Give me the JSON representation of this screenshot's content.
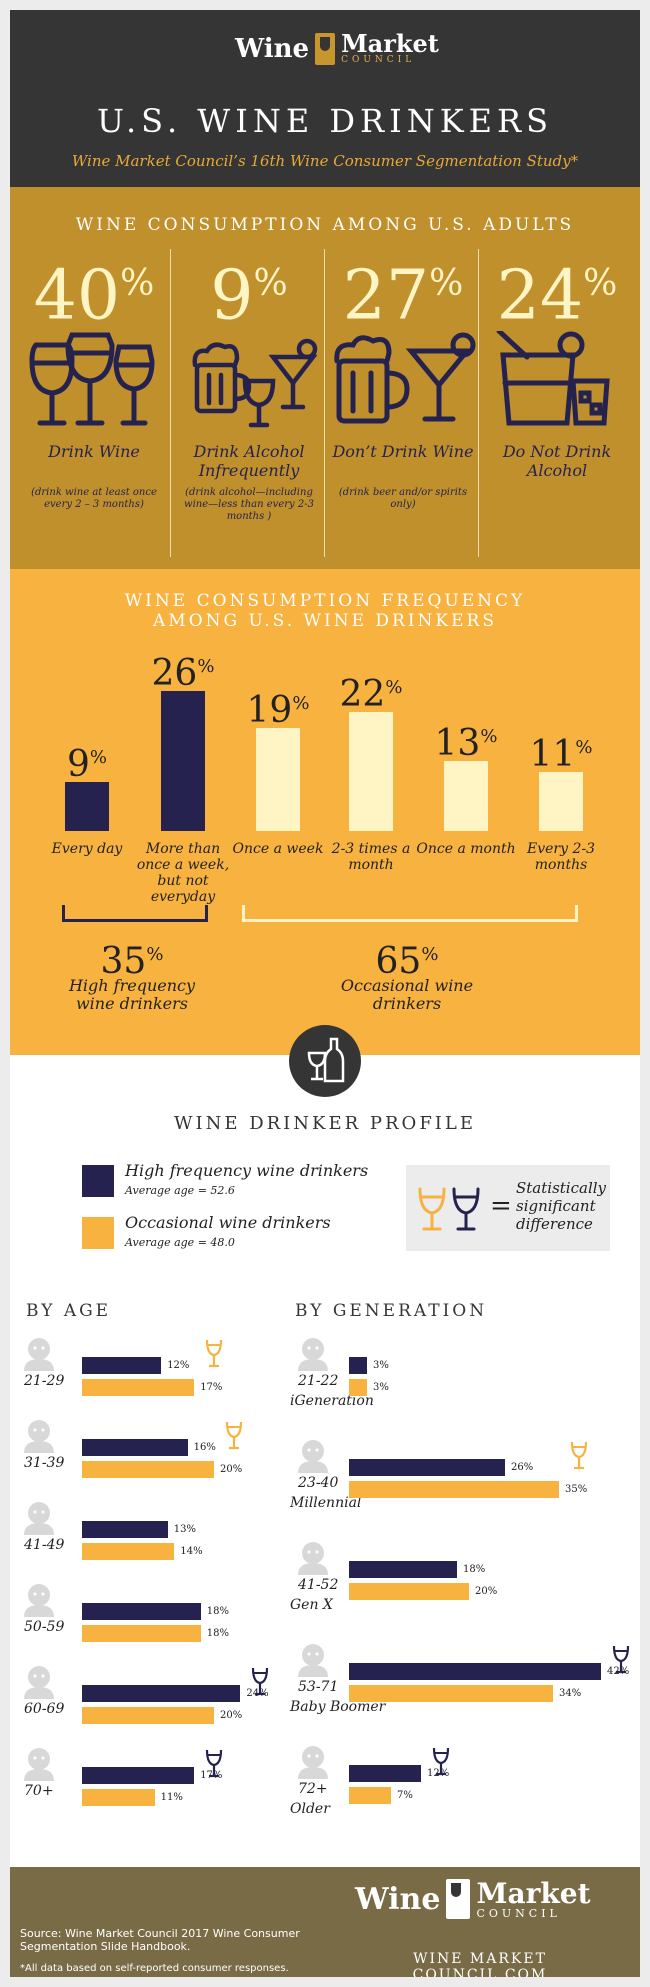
{
  "header": {
    "logo_left": "Wine",
    "logo_right": "Market",
    "logo_sub": "COUNCIL",
    "title": "U.S. WINE DRINKERS",
    "subtitle": "Wine Market Council’s 16th Wine Consumer Segmentation Study*"
  },
  "consumption": {
    "title": "WINE CONSUMPTION AMONG U.S. ADULTS",
    "items": [
      {
        "value": "40",
        "label": "Drink Wine",
        "note": "(drink wine at least once every 2 – 3 months)",
        "icon": "wine-glasses-icon"
      },
      {
        "value": "9",
        "label": "Drink Alcohol Infrequently",
        "note": "(drink alcohol—including wine—less than every 2-3 months )",
        "icon": "mixed-drinks-icon"
      },
      {
        "value": "27",
        "label": "Don’t Drink Wine",
        "note": "(drink beer and/or spirits only)",
        "icon": "beer-cocktail-icon"
      },
      {
        "value": "24",
        "label": "Do Not Drink Alcohol",
        "note": "",
        "icon": "soft-drinks-icon"
      }
    ]
  },
  "frequency": {
    "title_line1": "WINE CONSUMPTION FREQUENCY",
    "title_line2": "AMONG U.S. WINE DRINKERS",
    "groups": [
      {
        "value": "35",
        "label": "High frequency wine drinkers"
      },
      {
        "value": "65",
        "label": "Occasional wine drinkers"
      }
    ]
  },
  "profile": {
    "title": "WINE DRINKER PROFILE",
    "legend": [
      {
        "label": "High frequency wine drinkers",
        "sub": "Average age = 52.6",
        "color": "#25224f"
      },
      {
        "label": "Occasional wine drinkers",
        "sub": "Average age = 48.0",
        "color": "#f8b240"
      }
    ],
    "significance": {
      "symbol": "=",
      "text": "Statistically significant difference"
    },
    "by_age_title": "BY AGE",
    "by_generation_title": "BY GENERATION"
  },
  "colors": {
    "high": "#25224f",
    "occasional": "#f8b240",
    "cream": "#fff4c4",
    "gold": "#c0902c"
  },
  "chart_data": [
    {
      "type": "bar",
      "title": "WINE CONSUMPTION FREQUENCY AMONG U.S. WINE DRINKERS",
      "categories": [
        "Every day",
        "More than once a week, but not everyday",
        "Once a week",
        "2-3 times a month",
        "Once a month",
        "Every 2-3 months"
      ],
      "values": [
        9,
        26,
        19,
        22,
        13,
        11
      ],
      "unit": "%",
      "ylim": [
        0,
        30
      ]
    },
    {
      "type": "bar",
      "title": "BY AGE",
      "categories": [
        "21-29",
        "31-39",
        "41-49",
        "50-59",
        "60-69",
        "70+"
      ],
      "series": [
        {
          "name": "High frequency wine drinkers",
          "values": [
            12,
            16,
            13,
            18,
            24,
            17
          ]
        },
        {
          "name": "Occasional wine drinkers",
          "values": [
            17,
            20,
            14,
            18,
            20,
            11
          ]
        }
      ],
      "significant": [
        true,
        true,
        false,
        false,
        true,
        true
      ],
      "unit": "%"
    },
    {
      "type": "bar",
      "title": "BY GENERATION",
      "categories": [
        "iGeneration",
        "Millennial",
        "Gen X",
        "Baby Boomer",
        "Older"
      ],
      "ranges": [
        "21-22",
        "23-40",
        "41-52",
        "53-71",
        "72+"
      ],
      "series": [
        {
          "name": "High frequency wine drinkers",
          "values": [
            3,
            26,
            18,
            42,
            12
          ]
        },
        {
          "name": "Occasional wine drinkers",
          "values": [
            3,
            35,
            20,
            34,
            7
          ]
        }
      ],
      "significant": [
        false,
        true,
        false,
        true,
        true
      ],
      "unit": "%"
    }
  ],
  "footer": {
    "source": "Source: Wine Market Council 2017 Wine Consumer Segmentation Slide Handbook.",
    "disclaimer": "*All data based on self-reported consumer responses.",
    "url": "WINE MARKET COUNCIL.COM"
  }
}
